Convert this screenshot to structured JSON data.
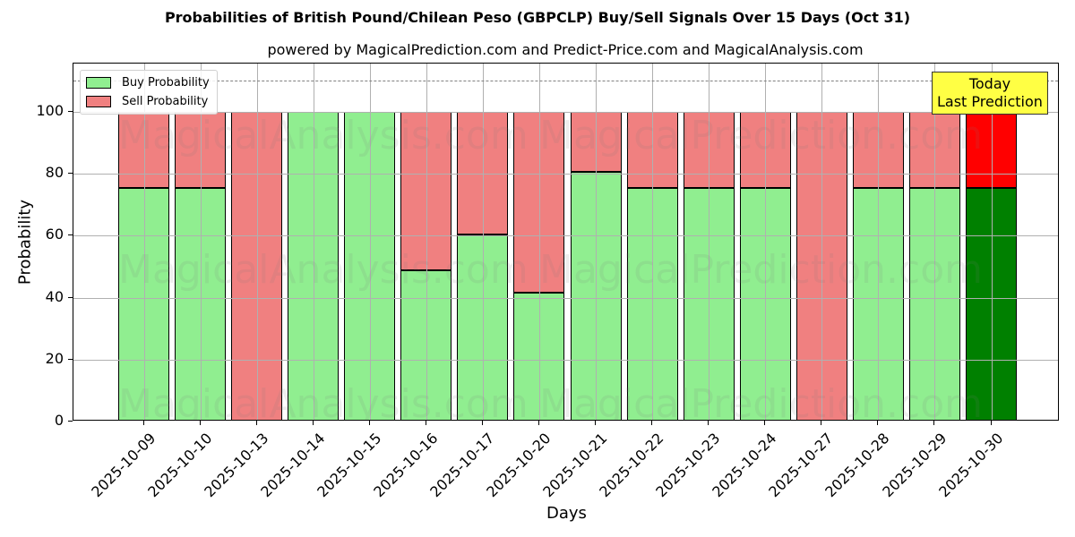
{
  "header": {
    "title": "Probabilities of British Pound/Chilean Peso (GBPCLP) Buy/Sell Signals Over 15 Days (Oct 31)",
    "subtitle": "powered by MagicalPrediction.com and Predict-Price.com and MagicalAnalysis.com"
  },
  "legend": {
    "buy_label": "Buy Probability",
    "sell_label": "Sell Probability"
  },
  "annotation": {
    "line1": "Today",
    "line2": "Last Prediction"
  },
  "watermarks": [
    "MagicalAnalysis.com",
    "MagicalPrediction.com"
  ],
  "colors": {
    "buy": "#90ee90",
    "sell": "#f08080",
    "buy_today": "#008000",
    "sell_today": "#ff0000",
    "annotation_bg": "#ffff44",
    "threshold_line": "#808080"
  },
  "chart_data": {
    "type": "bar",
    "stacked": true,
    "title": "Probabilities of British Pound/Chilean Peso (GBPCLP) Buy/Sell Signals Over 15 Days (Oct 31)",
    "subtitle": "powered by MagicalPrediction.com and Predict-Price.com and MagicalAnalysis.com",
    "xlabel": "Days",
    "ylabel": "Probability",
    "ylim": [
      0,
      115
    ],
    "yticks": [
      0,
      20,
      40,
      60,
      80,
      100
    ],
    "grid": true,
    "legend_position": "upper left",
    "threshold_line": 110,
    "categories": [
      "2025-10-09",
      "2025-10-10",
      "2025-10-13",
      "2025-10-14",
      "2025-10-15",
      "2025-10-16",
      "2025-10-17",
      "2025-10-20",
      "2025-10-21",
      "2025-10-22",
      "2025-10-23",
      "2025-10-24",
      "2025-10-27",
      "2025-10-28",
      "2025-10-29",
      "2025-10-30"
    ],
    "series": [
      {
        "name": "Buy Probability",
        "values": [
          75.4,
          75.4,
          0,
          100,
          100,
          48.8,
          60.4,
          41.6,
          80.6,
          75.4,
          75.4,
          75.4,
          0,
          75.4,
          75.4,
          75.4
        ]
      },
      {
        "name": "Sell Probability",
        "values": [
          24.6,
          24.6,
          100,
          0,
          0,
          51.2,
          39.6,
          58.4,
          19.4,
          24.6,
          24.6,
          24.6,
          100,
          24.6,
          24.6,
          24.6
        ]
      }
    ],
    "highlight": {
      "index": 15,
      "label": "Today\nLast Prediction"
    }
  }
}
